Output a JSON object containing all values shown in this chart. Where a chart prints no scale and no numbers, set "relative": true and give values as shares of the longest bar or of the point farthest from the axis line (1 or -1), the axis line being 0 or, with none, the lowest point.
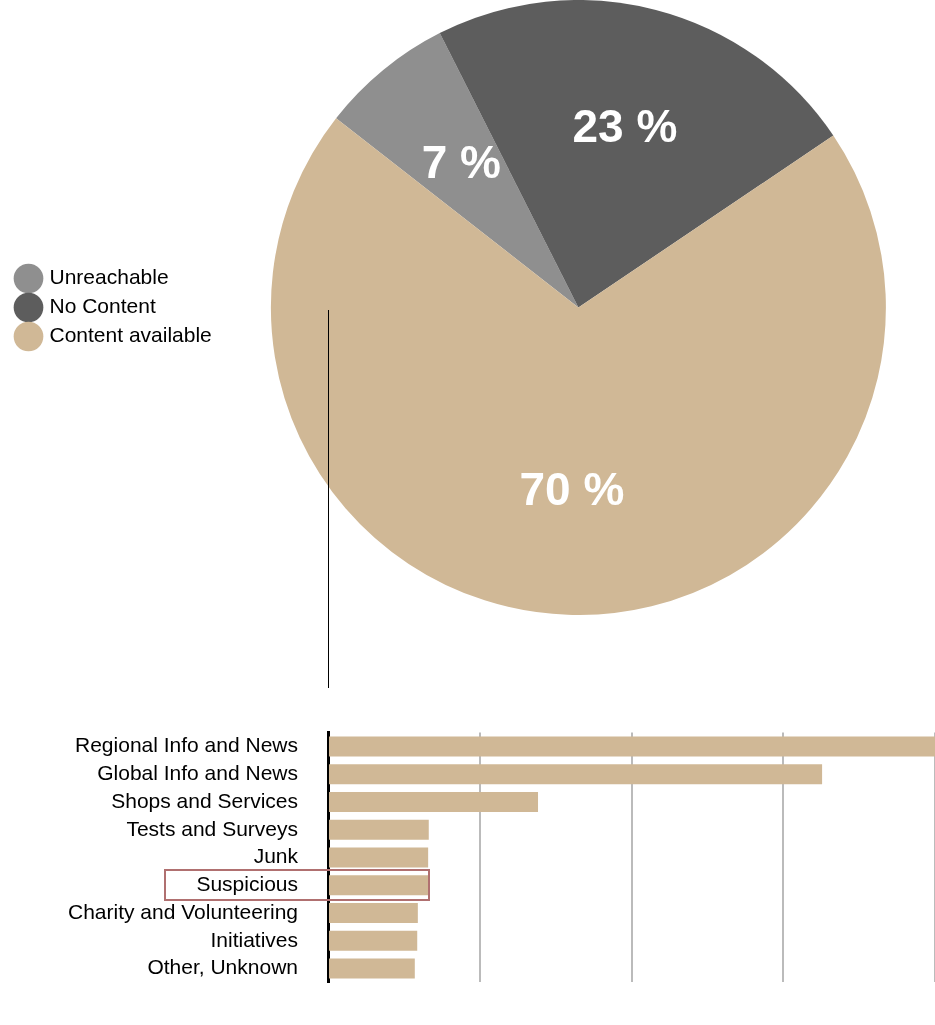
{
  "chart_data": [
    {
      "type": "pie",
      "categories": [
        "Unreachable",
        "No Content",
        "Content available"
      ],
      "values": [
        7,
        23,
        70
      ],
      "colors": [
        "#8f8f8f",
        "#5d5d5d",
        "#d0b896"
      ],
      "value_labels": [
        "7 %",
        "23 %",
        "70 %"
      ],
      "legend": "left"
    },
    {
      "type": "bar",
      "orientation": "horizontal",
      "relative": true,
      "grid": "x",
      "categories": [
        "Regional Info and News",
        "Global Info and News",
        "Shops and Services",
        "Tests and Surveys",
        "Junk",
        "Suspicious",
        "Charity and Volunteering",
        "Initiatives",
        "Other, Unknown"
      ],
      "values": [
        1,
        0.814,
        0.346,
        0.166,
        0.165,
        0.165,
        0.148,
        0.147,
        0.143
      ],
      "color": "#d0b896"
    }
  ]
}
